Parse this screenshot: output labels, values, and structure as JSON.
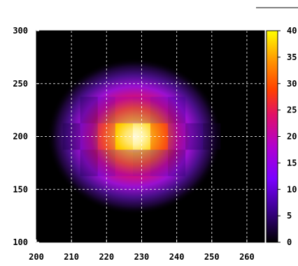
{
  "chart_data": {
    "type": "heatmap",
    "title": "",
    "xlabel": "",
    "ylabel": "",
    "xlim": [
      200,
      265
    ],
    "ylim": [
      100,
      300
    ],
    "x_ticks": [
      "200",
      "210",
      "220",
      "230",
      "240",
      "250",
      "260"
    ],
    "y_ticks": [
      "100",
      "150",
      "200",
      "250",
      "300"
    ],
    "grid": true,
    "colorbar": {
      "range": [
        0,
        40
      ],
      "ticks": [
        "0",
        "5",
        "10",
        "15",
        "20",
        "25",
        "30",
        "35",
        "40"
      ],
      "palette": "black-purple-red-yellow-white"
    },
    "hotspot": {
      "x_center": 228,
      "y_center": 200,
      "peak_value": 40
    },
    "cells": [
      {
        "x": 210,
        "y": 200,
        "v": 3
      },
      {
        "x": 215,
        "y": 175,
        "v": 4
      },
      {
        "x": 215,
        "y": 200,
        "v": 7
      },
      {
        "x": 215,
        "y": 225,
        "v": 4
      },
      {
        "x": 220,
        "y": 175,
        "v": 9
      },
      {
        "x": 220,
        "y": 200,
        "v": 20
      },
      {
        "x": 220,
        "y": 225,
        "v": 10
      },
      {
        "x": 225,
        "y": 175,
        "v": 14
      },
      {
        "x": 225,
        "y": 200,
        "v": 34
      },
      {
        "x": 225,
        "y": 225,
        "v": 15
      },
      {
        "x": 230,
        "y": 175,
        "v": 12
      },
      {
        "x": 230,
        "y": 200,
        "v": 38
      },
      {
        "x": 230,
        "y": 225,
        "v": 14
      },
      {
        "x": 235,
        "y": 175,
        "v": 9
      },
      {
        "x": 235,
        "y": 200,
        "v": 24
      },
      {
        "x": 235,
        "y": 225,
        "v": 10
      },
      {
        "x": 240,
        "y": 175,
        "v": 5
      },
      {
        "x": 240,
        "y": 200,
        "v": 10
      },
      {
        "x": 240,
        "y": 225,
        "v": 6
      },
      {
        "x": 245,
        "y": 200,
        "v": 4
      },
      {
        "x": 250,
        "y": 200,
        "v": 2
      }
    ]
  }
}
